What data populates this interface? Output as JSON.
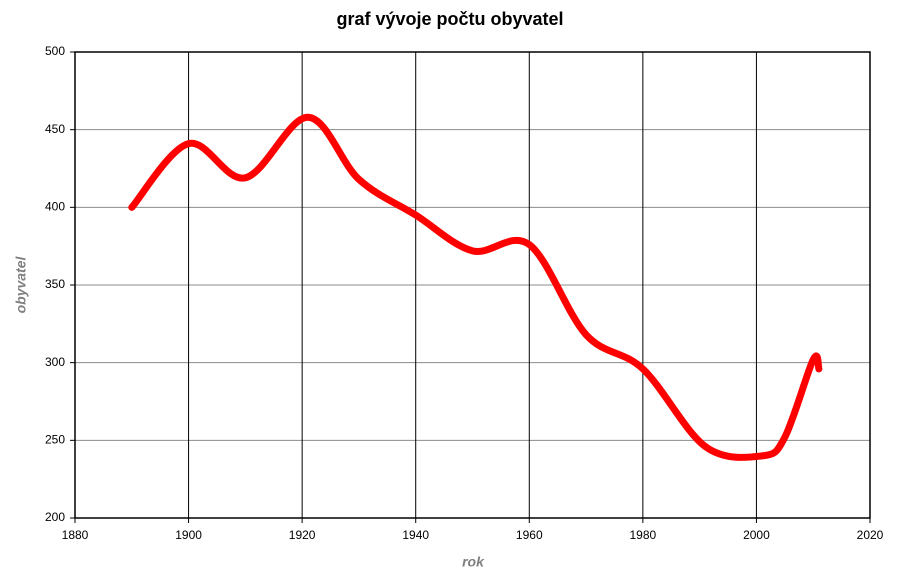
{
  "chart_data": {
    "type": "line",
    "title": "graf vývoje počtu obyvatel",
    "x_label": "rok",
    "y_label": "obyvatel",
    "x": [
      1890,
      1900,
      1910,
      1921,
      1930,
      1940,
      1950,
      1960,
      1970,
      1980,
      1991,
      2001,
      2005,
      2010,
      2011
    ],
    "series": [
      {
        "name": "obyvatel",
        "color": "#ff0000",
        "values": [
          400,
          441,
          419,
          458,
          418,
          395,
          372,
          376,
          318,
          296,
          246,
          240,
          252,
          302,
          296
        ]
      }
    ],
    "xlim": [
      1880,
      2020
    ],
    "xticks": [
      1880,
      1900,
      1920,
      1940,
      1960,
      1980,
      2000,
      2020
    ],
    "ylim": [
      200,
      500
    ],
    "yticks": [
      200,
      250,
      300,
      350,
      400,
      450,
      500
    ],
    "grid": true
  }
}
